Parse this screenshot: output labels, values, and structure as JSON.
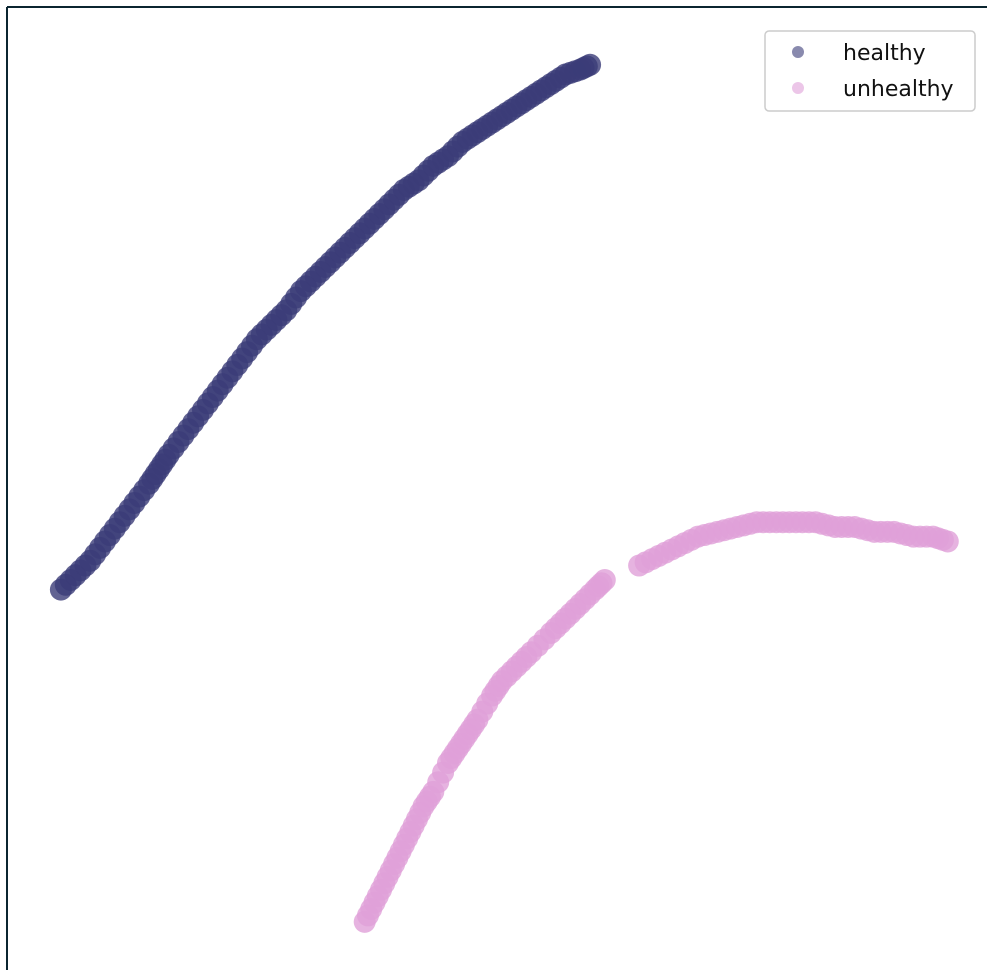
{
  "chart_data": {
    "type": "scatter",
    "title": "",
    "xlabel": "",
    "ylabel": "",
    "grid": false,
    "axes_visible": false,
    "legend_position": "top-right",
    "xlim": [
      0,
      100
    ],
    "ylim": [
      0,
      100
    ],
    "series": [
      {
        "name": "healthy",
        "color": "#3b3c78",
        "points": [
          [
            5.5,
            39.5
          ],
          [
            7.0,
            41.0
          ],
          [
            8.5,
            42.5
          ],
          [
            10.0,
            44.5
          ],
          [
            11.5,
            46.5
          ],
          [
            13.0,
            48.5
          ],
          [
            14.5,
            50.5
          ],
          [
            15.5,
            52.0
          ],
          [
            16.5,
            53.5
          ],
          [
            18.0,
            55.5
          ],
          [
            19.5,
            57.5
          ],
          [
            21.0,
            59.5
          ],
          [
            22.5,
            61.5
          ],
          [
            24.0,
            63.5
          ],
          [
            25.5,
            65.5
          ],
          [
            27.0,
            67.0
          ],
          [
            28.5,
            68.5
          ],
          [
            30.0,
            70.5
          ],
          [
            31.5,
            72.0
          ],
          [
            33.0,
            73.5
          ],
          [
            34.5,
            75.0
          ],
          [
            36.0,
            76.5
          ],
          [
            37.5,
            78.0
          ],
          [
            39.0,
            79.5
          ],
          [
            40.5,
            81.0
          ],
          [
            42.0,
            82.0
          ],
          [
            43.5,
            83.5
          ],
          [
            45.0,
            84.5
          ],
          [
            46.5,
            86.0
          ],
          [
            48.0,
            87.0
          ],
          [
            49.5,
            88.0
          ],
          [
            51.0,
            89.0
          ],
          [
            52.5,
            90.0
          ],
          [
            54.0,
            91.0
          ],
          [
            55.5,
            92.0
          ],
          [
            57.0,
            93.0
          ],
          [
            58.5,
            93.5
          ],
          [
            59.5,
            94.0
          ]
        ]
      },
      {
        "name": "unhealthy",
        "color": "#e0a0d8",
        "points": [
          [
            36.5,
            5.0
          ],
          [
            37.5,
            7.0
          ],
          [
            38.5,
            9.0
          ],
          [
            39.5,
            11.0
          ],
          [
            40.5,
            13.0
          ],
          [
            41.5,
            15.0
          ],
          [
            42.5,
            17.0
          ],
          [
            43.5,
            18.5
          ],
          [
            45.0,
            21.5
          ],
          [
            46.0,
            23.0
          ],
          [
            47.0,
            24.5
          ],
          [
            48.0,
            26.0
          ],
          [
            49.5,
            28.5
          ],
          [
            50.5,
            30.0
          ],
          [
            52.0,
            31.5
          ],
          [
            53.5,
            33.0
          ],
          [
            55.5,
            35.0
          ],
          [
            57.0,
            36.5
          ],
          [
            58.5,
            38.0
          ],
          [
            60.0,
            39.5
          ],
          [
            61.0,
            40.5
          ],
          [
            64.5,
            42.0
          ],
          [
            66.5,
            43.0
          ],
          [
            68.5,
            44.0
          ],
          [
            70.5,
            45.0
          ],
          [
            72.5,
            45.5
          ],
          [
            74.5,
            46.0
          ],
          [
            76.5,
            46.5
          ],
          [
            78.5,
            46.5
          ],
          [
            80.5,
            46.5
          ],
          [
            82.5,
            46.5
          ],
          [
            84.5,
            46.0
          ],
          [
            86.5,
            46.0
          ],
          [
            88.5,
            45.5
          ],
          [
            90.5,
            45.5
          ],
          [
            92.5,
            45.0
          ],
          [
            94.5,
            45.0
          ],
          [
            96.0,
            44.5
          ]
        ]
      }
    ]
  }
}
